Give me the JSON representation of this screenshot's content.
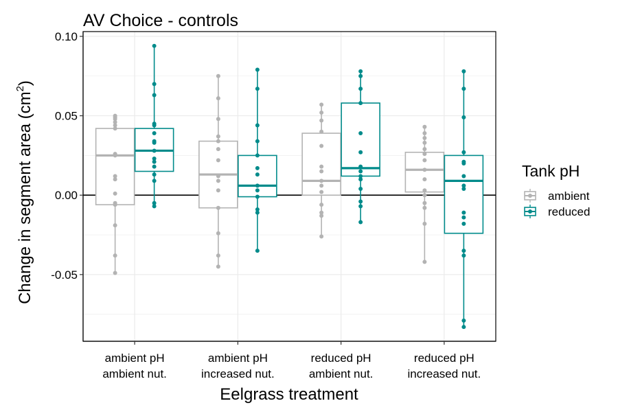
{
  "chart_data": {
    "type": "boxplot",
    "title": "AV Choice - controls",
    "xlabel": "Eelgrass treatment",
    "ylabel_text": "Change in segment area (cm",
    "ylabel_sup": "2",
    "ylabel_close": ")",
    "ylim": [
      -0.092,
      0.103
    ],
    "yticks": [
      {
        "value": 0.1,
        "label": "0.10"
      },
      {
        "value": 0.05,
        "label": "0.05"
      },
      {
        "value": 0.0,
        "label": "0.00"
      },
      {
        "value": -0.05,
        "label": "-0.05"
      }
    ],
    "reference_line": 0.0,
    "grid": true,
    "legend": {
      "title": "Tank pH",
      "placement": "right",
      "entries": [
        {
          "name": "ambient",
          "color": "#b3b3b3"
        },
        {
          "name": "reduced",
          "color": "#008b8b"
        }
      ]
    },
    "categories": [
      {
        "line1": "ambient pH",
        "line2": "ambient nut."
      },
      {
        "line1": "ambient pH",
        "line2": "increased nut."
      },
      {
        "line1": "reduced pH",
        "line2": "ambient nut."
      },
      {
        "line1": "reduced pH",
        "line2": "increased nut."
      }
    ],
    "series": [
      {
        "name": "ambient",
        "color": "#b3b3b3",
        "boxes": [
          {
            "lower": -0.049,
            "q1": -0.006,
            "median": 0.025,
            "q3": 0.042,
            "upper": 0.05
          },
          {
            "lower": -0.045,
            "q1": -0.008,
            "median": 0.013,
            "q3": 0.034,
            "upper": 0.075
          },
          {
            "lower": -0.026,
            "q1": 0.0,
            "median": 0.009,
            "q3": 0.039,
            "upper": 0.057
          },
          {
            "lower": -0.042,
            "q1": 0.002,
            "median": 0.016,
            "q3": 0.027,
            "upper": 0.043
          }
        ],
        "points": [
          [
            0.05,
            0.049,
            0.048,
            0.046,
            0.044,
            0.042,
            0.026,
            0.025,
            0.012,
            0.01,
            0.001,
            -0.005,
            -0.006,
            -0.019,
            -0.038,
            -0.049
          ],
          [
            0.075,
            0.061,
            0.048,
            0.037,
            0.034,
            0.029,
            0.022,
            0.012,
            0.009,
            0.003,
            -0.008,
            -0.024,
            -0.038,
            -0.045
          ],
          [
            0.057,
            0.052,
            0.047,
            0.04,
            0.031,
            0.018,
            0.015,
            0.009,
            0.006,
            0.002,
            -0.006,
            -0.011,
            -0.013,
            -0.026
          ],
          [
            0.043,
            0.039,
            0.036,
            0.033,
            0.029,
            0.026,
            0.022,
            0.016,
            0.01,
            0.003,
            0.0,
            -0.005,
            -0.008,
            -0.018,
            -0.042
          ]
        ]
      },
      {
        "name": "reduced",
        "color": "#008b8b",
        "boxes": [
          {
            "lower": -0.007,
            "q1": 0.015,
            "median": 0.028,
            "q3": 0.042,
            "upper": 0.094
          },
          {
            "lower": -0.035,
            "q1": -0.001,
            "median": 0.006,
            "q3": 0.025,
            "upper": 0.079
          },
          {
            "lower": -0.017,
            "q1": 0.012,
            "median": 0.017,
            "q3": 0.058,
            "upper": 0.078
          },
          {
            "lower": -0.083,
            "q1": -0.024,
            "median": 0.009,
            "q3": 0.025,
            "upper": 0.078
          }
        ],
        "points": [
          [
            0.094,
            0.07,
            0.063,
            0.045,
            0.044,
            0.039,
            0.034,
            0.033,
            0.028,
            0.023,
            0.021,
            0.018,
            0.013,
            0.009,
            -0.005,
            -0.007
          ],
          [
            0.079,
            0.067,
            0.044,
            0.034,
            0.025,
            0.017,
            0.013,
            0.006,
            0.003,
            -0.001,
            -0.009,
            -0.011,
            -0.035
          ],
          [
            0.078,
            0.075,
            0.067,
            0.058,
            0.039,
            0.027,
            0.018,
            0.015,
            0.012,
            0.01,
            0.004,
            -0.004,
            -0.007,
            -0.017
          ],
          [
            0.078,
            0.067,
            0.049,
            0.027,
            0.021,
            0.02,
            0.012,
            0.006,
            0.004,
            -0.011,
            -0.014,
            -0.018,
            -0.035,
            -0.038,
            -0.079,
            -0.083
          ]
        ]
      }
    ]
  }
}
